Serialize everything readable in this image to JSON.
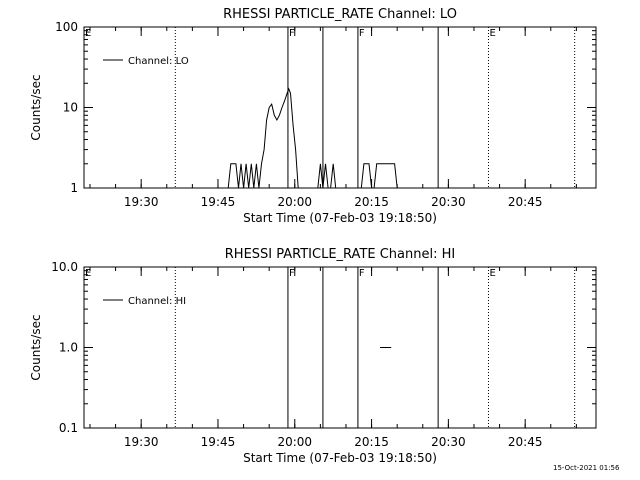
{
  "footer": {
    "timestamp": "15-Oct-2021 01:56"
  },
  "chart_data": [
    {
      "type": "line",
      "title": "RHESSI PARTICLE_RATE Channel: LO",
      "xlabel": "Start Time (07-Feb-03 19:18:50)",
      "ylabel": "Counts/sec",
      "yscale": "log",
      "xlim": [
        "19:18:50",
        "20:58:50"
      ],
      "ylim": [
        1,
        100
      ],
      "x_ticks": [
        "19:30",
        "19:45",
        "20:00",
        "20:15",
        "20:30",
        "20:45"
      ],
      "y_ticks": [
        "1",
        "10",
        "100"
      ],
      "legend": {
        "entries": [
          "Channel: LO"
        ],
        "placement": "top-left"
      },
      "vlines": [
        {
          "time": "19:36:40",
          "style": "dotted",
          "label": ""
        },
        {
          "time": "19:58:40",
          "style": "solid",
          "label": "F"
        },
        {
          "time": "20:05:30",
          "style": "solid",
          "label": ""
        },
        {
          "time": "20:12:20",
          "style": "solid",
          "label": "F"
        },
        {
          "time": "20:28:00",
          "style": "solid",
          "label": ""
        },
        {
          "time": "20:37:50",
          "style": "dotted",
          "label": "E"
        },
        {
          "time": "20:54:40",
          "style": "dotted",
          "label": ""
        }
      ],
      "edge_labels": [
        {
          "time": "19:18:50",
          "label": "E"
        }
      ],
      "series": [
        {
          "segments": [
            [
              [
                "19:47:00",
                1
              ],
              [
                "19:47:30",
                2
              ],
              [
                "19:48:30",
                2
              ],
              [
                "19:49:00",
                1
              ],
              [
                "19:49:30",
                2
              ],
              [
                "19:50:00",
                1
              ],
              [
                "19:50:30",
                2
              ],
              [
                "19:51:00",
                1
              ],
              [
                "19:51:30",
                2
              ],
              [
                "19:52:00",
                1
              ],
              [
                "19:52:30",
                2
              ],
              [
                "19:53:00",
                1
              ],
              [
                "19:53:30",
                2
              ],
              [
                "19:54:00",
                3
              ],
              [
                "19:54:30",
                7
              ],
              [
                "19:55:00",
                10
              ],
              [
                "19:55:30",
                11
              ],
              [
                "19:56:00",
                8
              ],
              [
                "19:56:30",
                7
              ],
              [
                "19:57:00",
                8
              ],
              [
                "19:57:30",
                10
              ],
              [
                "19:58:00",
                12
              ],
              [
                "19:58:30",
                15
              ],
              [
                "19:58:50",
                17
              ],
              [
                "19:59:10",
                15
              ],
              [
                "19:59:40",
                6
              ],
              [
                "20:00:10",
                3
              ],
              [
                "20:00:40",
                1
              ]
            ],
            [
              [
                "20:04:30",
                1
              ],
              [
                "20:05:00",
                2
              ],
              [
                "20:05:30",
                1
              ],
              [
                "20:06:00",
                2
              ],
              [
                "20:06:30",
                1
              ]
            ],
            [
              [
                "20:07:00",
                1
              ],
              [
                "20:07:30",
                2
              ],
              [
                "20:08:00",
                1
              ]
            ],
            [
              [
                "20:13:00",
                1
              ],
              [
                "20:13:30",
                2
              ],
              [
                "20:14:30",
                2
              ],
              [
                "20:15:00",
                1
              ]
            ],
            [
              [
                "20:15:30",
                1
              ],
              [
                "20:16:00",
                2
              ],
              [
                "20:19:30",
                2
              ],
              [
                "20:20:00",
                1
              ]
            ]
          ]
        }
      ]
    },
    {
      "type": "line",
      "title": "RHESSI PARTICLE_RATE Channel: HI",
      "xlabel": "Start Time (07-Feb-03 19:18:50)",
      "ylabel": "Counts/sec",
      "yscale": "log",
      "xlim": [
        "19:18:50",
        "20:58:50"
      ],
      "ylim": [
        0.1,
        10
      ],
      "x_ticks": [
        "19:30",
        "19:45",
        "20:00",
        "20:15",
        "20:30",
        "20:45"
      ],
      "y_ticks": [
        "0.1",
        "1.0",
        "10.0"
      ],
      "legend": {
        "entries": [
          "Channel: HI"
        ],
        "placement": "top-left"
      },
      "vlines": [
        {
          "time": "19:36:40",
          "style": "dotted",
          "label": ""
        },
        {
          "time": "19:58:40",
          "style": "solid",
          "label": "F"
        },
        {
          "time": "20:05:30",
          "style": "solid",
          "label": ""
        },
        {
          "time": "20:12:20",
          "style": "solid",
          "label": "F"
        },
        {
          "time": "20:28:00",
          "style": "solid",
          "label": ""
        },
        {
          "time": "20:37:50",
          "style": "dotted",
          "label": "E"
        },
        {
          "time": "20:54:40",
          "style": "dotted",
          "label": ""
        }
      ],
      "edge_labels": [
        {
          "time": "19:18:50",
          "label": "E"
        }
      ],
      "series": [
        {
          "segments": [
            [
              [
                "20:16:40",
                1
              ],
              [
                "20:18:50",
                1
              ]
            ]
          ]
        }
      ]
    }
  ]
}
